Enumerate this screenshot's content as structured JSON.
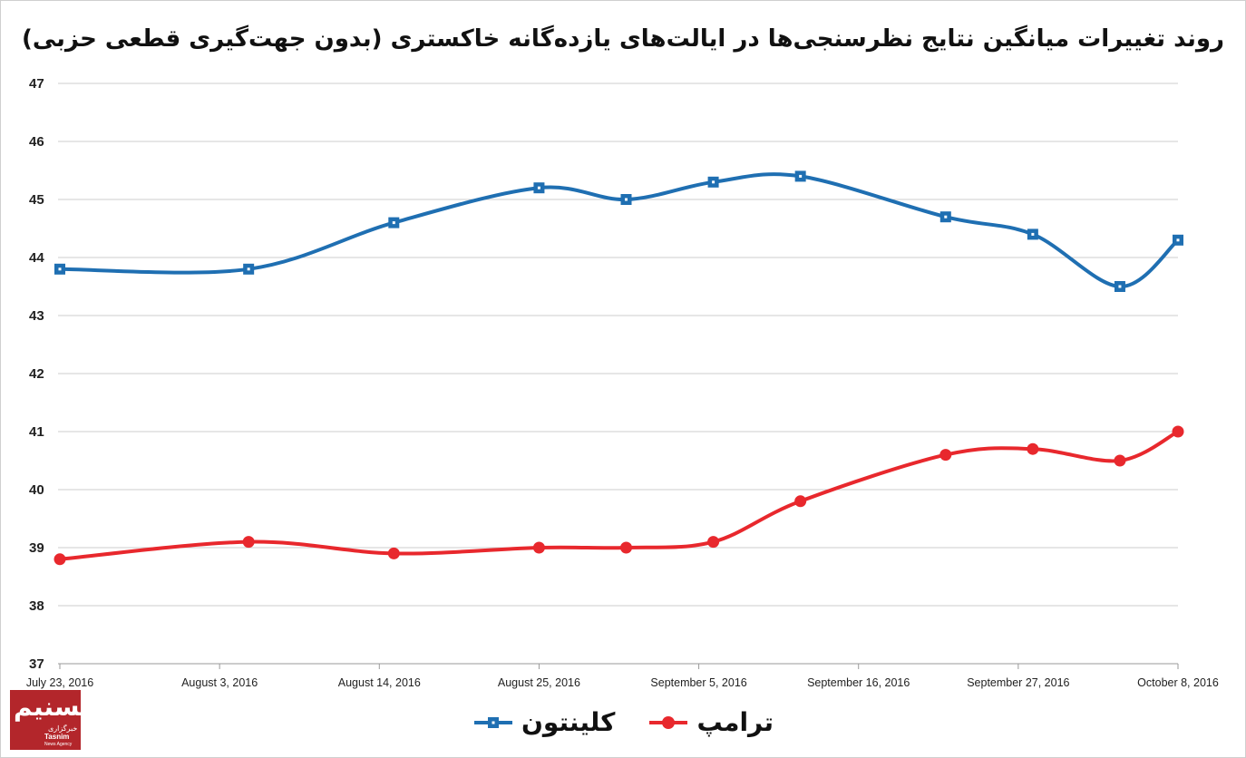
{
  "chart_data": {
    "type": "line",
    "title": "روند تغییرات میانگین نتایج نظرسنجی‌ها در ایالت‌های یازده‌گانه خاکستری (بدون جهت‌گیری قطعی حزبی)",
    "xlabel": "",
    "ylabel": "",
    "ylim": [
      37,
      47
    ],
    "yticks": [
      "37",
      "38",
      "39",
      "40",
      "41",
      "42",
      "43",
      "44",
      "45",
      "46",
      "47"
    ],
    "xlim": [
      "2016-07-23",
      "2016-10-08"
    ],
    "x_tick_labels": [
      "July 23, 2016",
      "August 3, 2016",
      "August 14, 2016",
      "August 25, 2016",
      "September 5, 2016",
      "September 16, 2016",
      "September 27, 2016",
      "October 8, 2016"
    ],
    "x_tick_dates": [
      "2016-07-23",
      "2016-08-03",
      "2016-08-14",
      "2016-08-25",
      "2016-09-05",
      "2016-09-16",
      "2016-09-27",
      "2016-10-08"
    ],
    "grid": "horizontal",
    "legend_position": "bottom",
    "series": [
      {
        "name": "کلینتون",
        "color": "#1f6fb2",
        "marker": "square",
        "x": [
          "2016-07-23",
          "2016-08-05",
          "2016-08-15",
          "2016-08-25",
          "2016-08-31",
          "2016-09-06",
          "2016-09-12",
          "2016-09-22",
          "2016-09-28",
          "2016-10-04",
          "2016-10-08"
        ],
        "values": [
          43.8,
          43.8,
          44.6,
          45.2,
          45.0,
          45.3,
          45.4,
          44.7,
          44.4,
          43.5,
          44.3
        ]
      },
      {
        "name": "ترامپ",
        "color": "#e8282d",
        "marker": "circle",
        "x": [
          "2016-07-23",
          "2016-08-05",
          "2016-08-15",
          "2016-08-25",
          "2016-08-31",
          "2016-09-06",
          "2016-09-12",
          "2016-09-22",
          "2016-09-28",
          "2016-10-04",
          "2016-10-08"
        ],
        "values": [
          38.8,
          39.1,
          38.9,
          39.0,
          39.0,
          39.1,
          39.8,
          40.6,
          40.7,
          40.5,
          41.0
        ]
      }
    ]
  },
  "logo": {
    "mark": "تسنیم",
    "text_fa": "خبرگزاری",
    "text_en": "Tasnim",
    "subtext": "News Agency"
  }
}
